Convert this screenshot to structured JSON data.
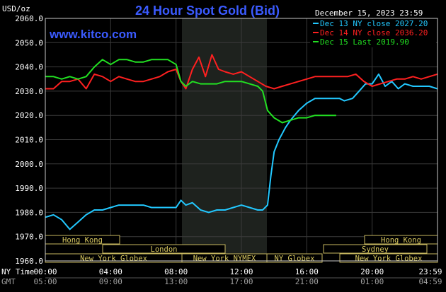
{
  "chart_data": {
    "type": "line",
    "title": "24 Hour Spot Gold (Bid)",
    "site": "www.kitco.com",
    "ylabel": "USD/oz",
    "date_label": "December 15, 2023 23:59",
    "ylim": [
      1960,
      2060
    ],
    "y_ticks": [
      "2060.0",
      "2050.0",
      "2040.0",
      "2030.0",
      "2020.0",
      "2010.0",
      "2000.0",
      "1990.0",
      "1980.0",
      "1970.0",
      "1960.0"
    ],
    "x_ticks_ny": [
      "00:00",
      "04:00",
      "08:00",
      "12:00",
      "16:00",
      "20:00",
      "23:59"
    ],
    "x_ticks_gmt": [
      "05:00",
      "09:00",
      "13:00",
      "17:00",
      "21:00",
      "01:00",
      "04:59"
    ],
    "ny_time_label": "NY Time",
    "gmt_label": "GMT",
    "grid": true,
    "legend_position": "top-right",
    "series": [
      {
        "name": "Dec 13 NY close 2027.20",
        "color": "#22c8ff",
        "x": [
          0,
          0.5,
          1,
          1.5,
          2,
          2.5,
          3,
          3.5,
          4,
          4.5,
          5,
          5.5,
          6,
          6.5,
          7,
          7.5,
          8,
          8.3,
          8.6,
          9,
          9.5,
          10,
          10.5,
          11,
          11.5,
          12,
          12.5,
          13,
          13.3,
          13.6,
          13.8,
          14,
          14.3,
          14.7,
          15,
          15.5,
          16,
          16.5,
          17,
          17.5,
          18,
          18.3,
          18.8,
          19.2,
          19.6,
          20,
          20.4,
          20.8,
          21.2,
          21.6,
          22,
          22.5,
          23,
          23.5,
          23.99
        ],
        "y": [
          1978,
          1979,
          1977,
          1973,
          1976,
          1979,
          1981,
          1981,
          1982,
          1983,
          1983,
          1983,
          1983,
          1982,
          1982,
          1982,
          1982,
          1985,
          1983,
          1984,
          1981,
          1980,
          1981,
          1981,
          1982,
          1983,
          1982,
          1981,
          1981,
          1983,
          1995,
          2005,
          2010,
          2015,
          2018,
          2022,
          2025,
          2027,
          2027,
          2027,
          2027,
          2026,
          2027,
          2030,
          2033,
          2033,
          2037,
          2032,
          2034,
          2031,
          2033,
          2032,
          2032,
          2032,
          2031
        ]
      },
      {
        "name": "Dec 14 NY close 2036.20",
        "color": "#ff2020",
        "x": [
          0,
          0.5,
          1,
          1.5,
          2,
          2.5,
          3,
          3.5,
          4,
          4.5,
          5,
          5.5,
          6,
          6.5,
          7,
          7.5,
          8,
          8.3,
          8.6,
          9,
          9.4,
          9.8,
          10.2,
          10.6,
          11,
          11.5,
          12,
          12.5,
          13,
          13.5,
          14,
          14.5,
          15,
          15.5,
          16,
          16.5,
          17,
          17.5,
          18,
          18.5,
          19,
          19.5,
          20,
          20.5,
          21,
          21.5,
          22,
          22.5,
          23,
          23.5,
          23.99
        ],
        "y": [
          2031,
          2031,
          2034,
          2034,
          2035,
          2031,
          2037,
          2036,
          2034,
          2036,
          2035,
          2034,
          2034,
          2035,
          2036,
          2038,
          2039,
          2034,
          2031,
          2039,
          2044,
          2036,
          2045,
          2039,
          2038,
          2037,
          2038,
          2036,
          2034,
          2032,
          2031,
          2032,
          2033,
          2034,
          2035,
          2036,
          2036,
          2036,
          2036,
          2036,
          2037,
          2034,
          2032,
          2033,
          2034,
          2035,
          2035,
          2036,
          2035,
          2036,
          2037
        ]
      },
      {
        "name": "Dec 15 Last 2019.90",
        "color": "#22e022",
        "x": [
          0,
          0.5,
          1,
          1.5,
          2,
          2.5,
          3,
          3.5,
          4,
          4.5,
          5,
          5.5,
          6,
          6.5,
          7,
          7.5,
          8,
          8.3,
          8.6,
          9,
          9.5,
          10,
          10.5,
          11,
          11.5,
          12,
          12.5,
          13,
          13.3,
          13.6,
          14,
          14.5,
          15,
          15.5,
          16,
          16.5,
          17,
          17.5,
          17.8
        ],
        "y": [
          2036,
          2036,
          2035,
          2036,
          2035,
          2036,
          2040,
          2043,
          2041,
          2043,
          2043,
          2042,
          2042,
          2043,
          2043,
          2043,
          2041,
          2034,
          2032,
          2034,
          2033,
          2033,
          2033,
          2034,
          2034,
          2034,
          2033,
          2032,
          2030,
          2022,
          2019,
          2017,
          2018,
          2019,
          2019,
          2020,
          2020,
          2020,
          2020
        ]
      }
    ]
  },
  "sessions": {
    "hong_kong": "Hong Kong",
    "london": "London",
    "new_york_globex": "New York Globex",
    "new_york_nymex": "New York NYMEX",
    "ny_globex": "NY Globex",
    "sydney": "Sydney"
  }
}
